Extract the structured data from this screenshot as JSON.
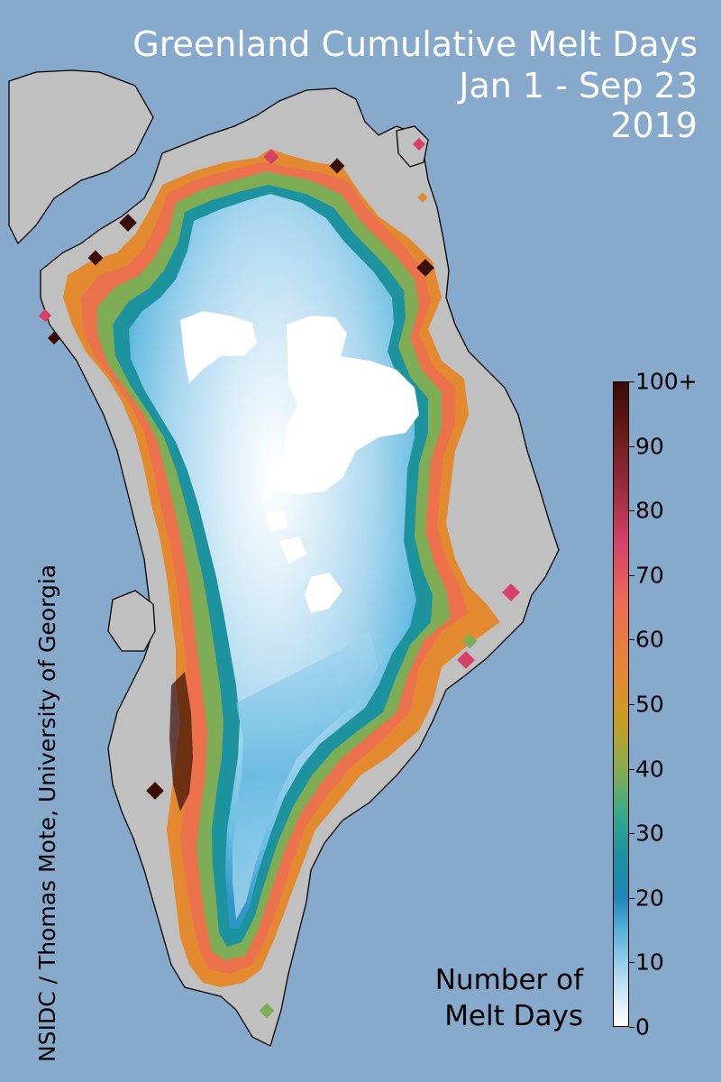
{
  "title": {
    "line1": "Greenland Cumulative Melt Days",
    "line2": "Jan 1 - Sep 23",
    "line3": "2019"
  },
  "credit": "NSIDC / Thomas Mote, University of Georgia",
  "legend": {
    "title_line1": "Number of",
    "title_line2": "Melt Days",
    "min": 0,
    "max": 100,
    "ticks": [
      "0",
      "10",
      "20",
      "30",
      "40",
      "50",
      "60",
      "70",
      "80",
      "90",
      "100+"
    ]
  },
  "colors": {
    "ocean": "#87a9cb",
    "land": "#c0c0c0",
    "coastline": "#000000",
    "no_melt": "#ffffff",
    "scale": [
      "#ffffff",
      "#91cdea",
      "#1f86b8",
      "#1d93a0",
      "#7fad55",
      "#c4a021",
      "#e38a31",
      "#ee6a55",
      "#d8406a",
      "#9e2c42",
      "#3a0b07"
    ]
  }
}
